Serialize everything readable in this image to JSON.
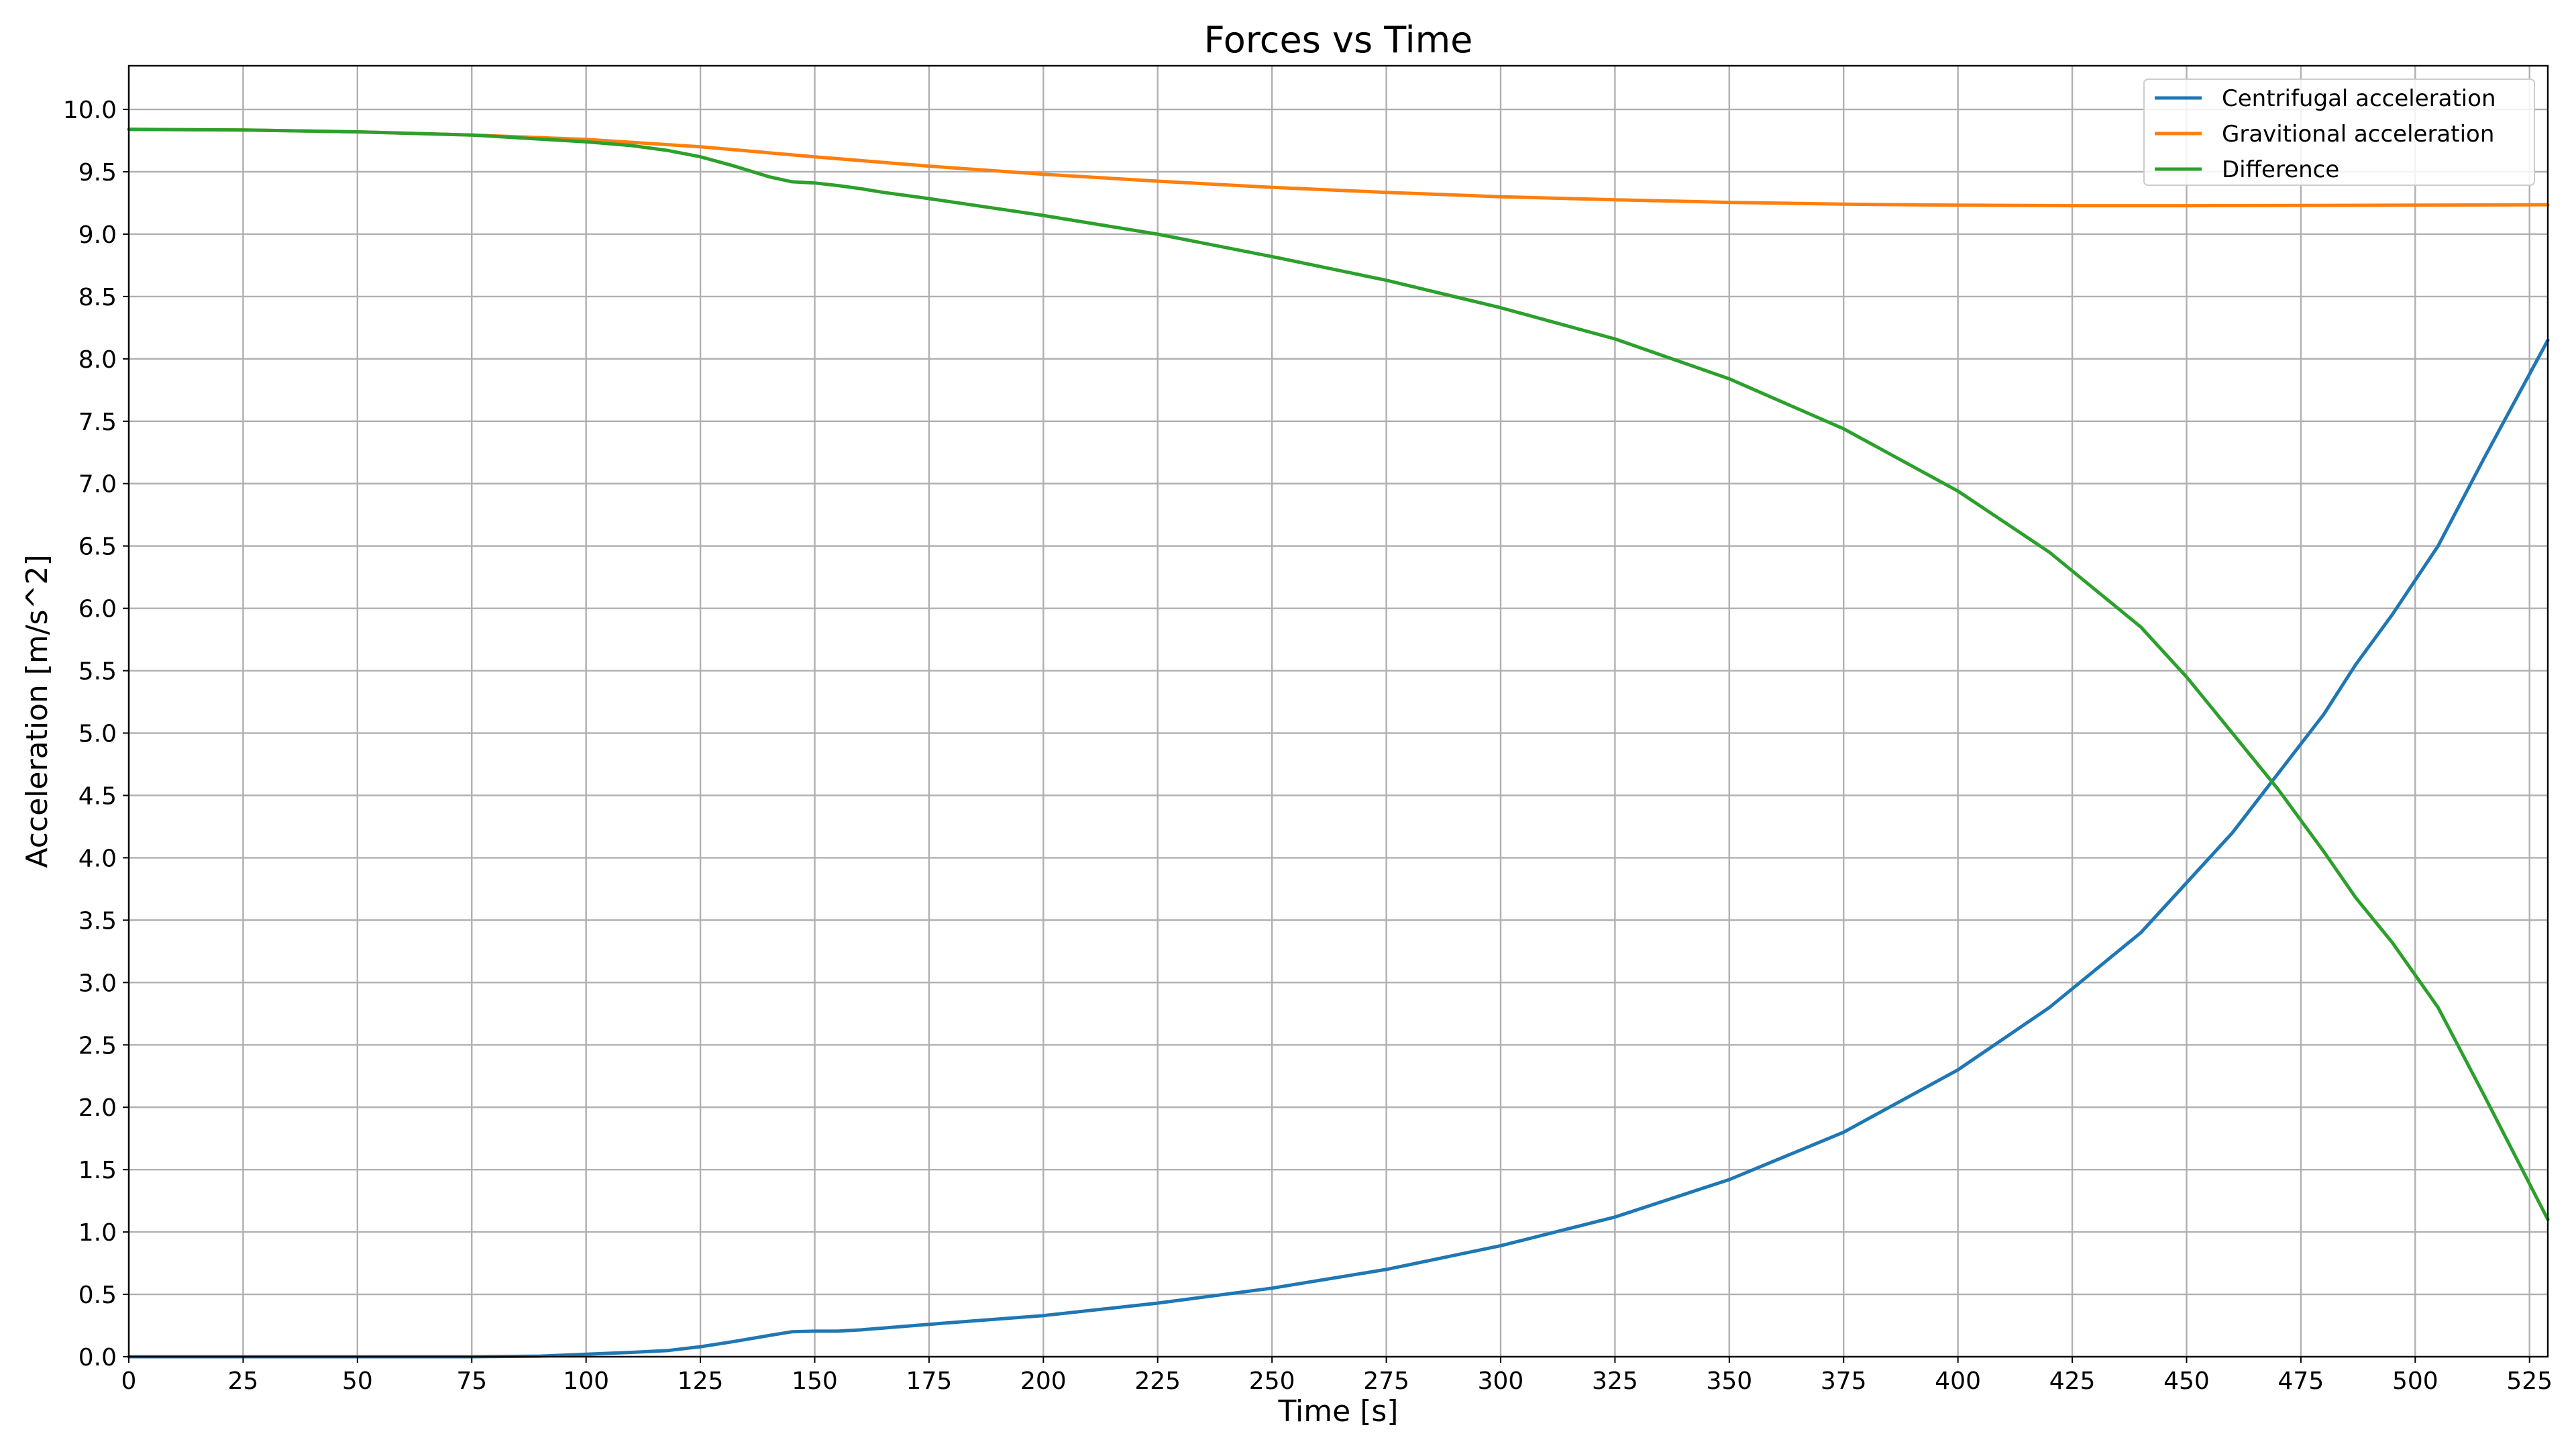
{
  "chart_data": {
    "type": "line",
    "title": "Forces vs Time",
    "xlabel": "Time [s]",
    "ylabel": "Acceleration [m/s^2]",
    "xlim": [
      0,
      529
    ],
    "ylim": [
      0,
      10.35
    ],
    "xticks": [
      0,
      25,
      50,
      75,
      100,
      125,
      150,
      175,
      200,
      225,
      250,
      275,
      300,
      325,
      350,
      375,
      400,
      425,
      450,
      475,
      500,
      525
    ],
    "xtick_labels": [
      "0",
      "25",
      "50",
      "75",
      "100",
      "125",
      "150",
      "175",
      "200",
      "225",
      "250",
      "275",
      "300",
      "325",
      "350",
      "375",
      "400",
      "425",
      "450",
      "475",
      "500",
      "525"
    ],
    "yticks": [
      0,
      0.5,
      1,
      1.5,
      2,
      2.5,
      3,
      3.5,
      4,
      4.5,
      5,
      5.5,
      6,
      6.5,
      7,
      7.5,
      8,
      8.5,
      9,
      9.5,
      10
    ],
    "ytick_labels": [
      "0.0",
      "0.5",
      "1.0",
      "1.5",
      "2.0",
      "2.5",
      "3.0",
      "3.5",
      "4.0",
      "4.5",
      "5.0",
      "5.5",
      "6.0",
      "6.5",
      "7.0",
      "7.5",
      "8.0",
      "8.5",
      "9.0",
      "9.5",
      "10.0"
    ],
    "grid": true,
    "legend_position": "top-right",
    "series": [
      {
        "name": "Centrifugal acceleration",
        "color": "#1f77b4",
        "x": [
          0,
          50,
          75,
          90,
          100,
          110,
          118,
          125,
          132,
          140,
          145,
          150,
          155,
          160,
          165,
          175,
          200,
          225,
          250,
          275,
          300,
          325,
          350,
          375,
          400,
          420,
          440,
          460,
          480,
          487,
          495,
          505,
          515,
          529
        ],
        "y": [
          0,
          0,
          0,
          0.005,
          0.02,
          0.035,
          0.05,
          0.08,
          0.12,
          0.17,
          0.2,
          0.205,
          0.205,
          0.215,
          0.23,
          0.26,
          0.33,
          0.43,
          0.55,
          0.7,
          0.89,
          1.12,
          1.42,
          1.8,
          2.3,
          2.8,
          3.4,
          4.2,
          5.15,
          5.55,
          5.95,
          6.5,
          7.2,
          8.15
        ]
      },
      {
        "name": "Gravitional acceleration",
        "color": "#ff7f0e",
        "x": [
          0,
          25,
          50,
          75,
          100,
          125,
          150,
          175,
          200,
          225,
          250,
          275,
          300,
          325,
          350,
          375,
          400,
          425,
          450,
          475,
          500,
          529
        ],
        "y": [
          9.84,
          9.835,
          9.82,
          9.795,
          9.76,
          9.7,
          9.62,
          9.545,
          9.48,
          9.425,
          9.375,
          9.335,
          9.3,
          9.275,
          9.255,
          9.24,
          9.232,
          9.228,
          9.228,
          9.23,
          9.232,
          9.236
        ]
      },
      {
        "name": "Difference",
        "color": "#2ca02c",
        "x": [
          0,
          25,
          50,
          75,
          100,
          110,
          118,
          125,
          132,
          140,
          145,
          150,
          155,
          160,
          165,
          175,
          200,
          225,
          250,
          275,
          300,
          325,
          350,
          375,
          400,
          420,
          440,
          450,
          460,
          470,
          480,
          487,
          495,
          505,
          515,
          529
        ],
        "y": [
          9.84,
          9.835,
          9.82,
          9.795,
          9.74,
          9.71,
          9.67,
          9.62,
          9.55,
          9.46,
          9.42,
          9.41,
          9.39,
          9.365,
          9.335,
          9.285,
          9.15,
          9.0,
          8.82,
          8.63,
          8.41,
          8.16,
          7.84,
          7.44,
          6.94,
          6.45,
          5.85,
          5.45,
          5.0,
          4.55,
          4.05,
          3.68,
          3.32,
          2.8,
          2.1,
          1.1
        ]
      }
    ]
  }
}
